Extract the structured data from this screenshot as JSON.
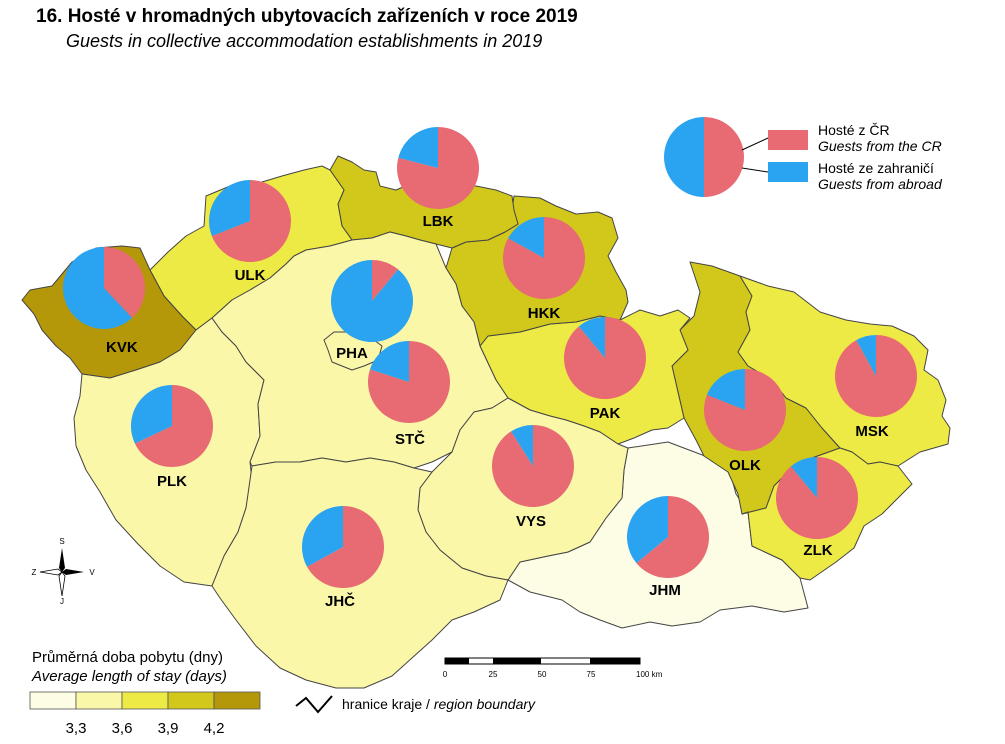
{
  "title": {
    "cz": "16. Hosté v hromadných ubytovacích zařízeních v roce 2019",
    "en": "Guests in collective accommodation establishments in 2019"
  },
  "colors": {
    "domestic": "#E86A73",
    "foreign": "#2AA3F0",
    "class1": "#FDFCE4",
    "class2": "#FAF7A8",
    "class3": "#EEEA45",
    "class4": "#D2C81C",
    "class5": "#B5970A"
  },
  "pie_legend": {
    "domestic_cz": "Hosté z ČR",
    "domestic_en": "Guests from the CR",
    "foreign_cz": "Hosté ze zahraničí",
    "foreign_en": "Guests from abroad"
  },
  "regions": [
    {
      "code": "KVK",
      "domestic_share": 0.38,
      "stay_class": 5
    },
    {
      "code": "ULK",
      "domestic_share": 0.69,
      "stay_class": 3
    },
    {
      "code": "LBK",
      "domestic_share": 0.79,
      "stay_class": 4
    },
    {
      "code": "HKK",
      "domestic_share": 0.83,
      "stay_class": 4
    },
    {
      "code": "PHA",
      "domestic_share": 0.11,
      "stay_class": 2
    },
    {
      "code": "PLK",
      "domestic_share": 0.68,
      "stay_class": 2
    },
    {
      "code": "STČ",
      "domestic_share": 0.8,
      "stay_class": 2
    },
    {
      "code": "PAK",
      "domestic_share": 0.89,
      "stay_class": 3
    },
    {
      "code": "VYS",
      "domestic_share": 0.91,
      "stay_class": 2
    },
    {
      "code": "JHČ",
      "domestic_share": 0.67,
      "stay_class": 2
    },
    {
      "code": "JHM",
      "domestic_share": 0.64,
      "stay_class": 1
    },
    {
      "code": "OLK",
      "domestic_share": 0.81,
      "stay_class": 4
    },
    {
      "code": "MSK",
      "domestic_share": 0.92,
      "stay_class": 3
    },
    {
      "code": "ZLK",
      "domestic_share": 0.89,
      "stay_class": 3
    }
  ],
  "legend": {
    "heading_cz": "Průměrná doba pobytu (dny)",
    "heading_en": "Average length of stay (days)",
    "breaks": [
      "3,3",
      "3,6",
      "3,9",
      "4,2"
    ]
  },
  "boundary": {
    "label_cz": "hranice kraje",
    "separator": " / ",
    "label_en": "region boundary"
  },
  "scale_bar": {
    "ticks": [
      "0",
      "25",
      "50",
      "75",
      "100 km"
    ]
  },
  "compass": {
    "n": "S",
    "s": "J",
    "w": "Z",
    "e": "V"
  }
}
